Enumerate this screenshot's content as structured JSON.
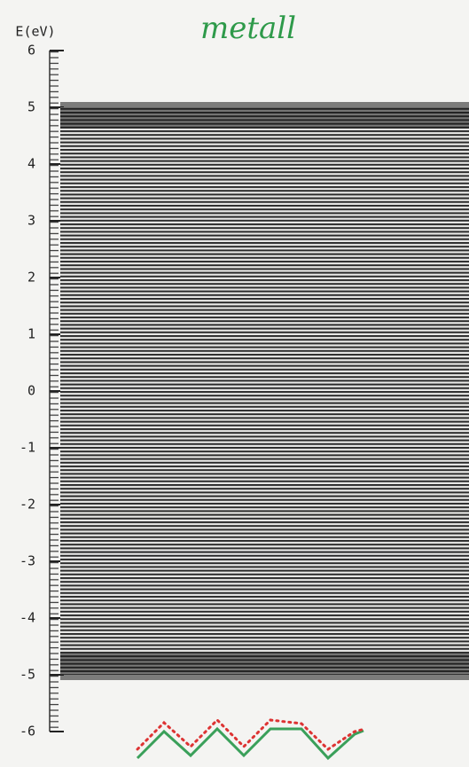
{
  "chart_data": {
    "type": "energy-band",
    "title": "metall",
    "y_label": "E(eV)",
    "ylim": [
      -6,
      6
    ],
    "yticks": [
      6,
      5,
      4,
      3,
      2,
      1,
      0,
      -1,
      -2,
      -3,
      -4,
      -5,
      -6
    ],
    "band": [
      -5,
      5
    ],
    "color": "#1a1a1a"
  }
}
